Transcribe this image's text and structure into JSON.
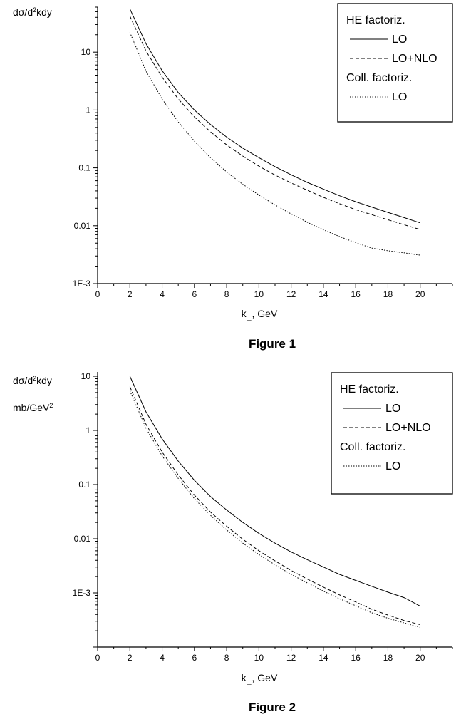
{
  "chart_data": [
    {
      "type": "line",
      "figure_caption": "Figure 1",
      "ylabel": {
        "main": "dσ/d",
        "sup": "2",
        "tail": "kdy"
      },
      "ylabel_line2": null,
      "xlabel": {
        "main": "k",
        "sub": "⊥",
        "tail": ", GeV"
      },
      "xlim": [
        0,
        22
      ],
      "ylim": [
        0.001,
        60
      ],
      "yscale": "log",
      "xticks": [
        0,
        2,
        4,
        6,
        8,
        10,
        12,
        14,
        16,
        18,
        20
      ],
      "yticks": [
        {
          "value": 0.001,
          "label": "1E-3"
        },
        {
          "value": 0.01,
          "label": "0.01"
        },
        {
          "value": 0.1,
          "label": "0.1"
        },
        {
          "value": 1,
          "label": "1"
        },
        {
          "value": 10,
          "label": "10"
        }
      ],
      "x": [
        2,
        3,
        4,
        5,
        6,
        7,
        8,
        9,
        10,
        11,
        12,
        13,
        14,
        15,
        16,
        17,
        18,
        19,
        20
      ],
      "series": [
        {
          "name": "LO",
          "group": "HE factoriz.",
          "style": "solid",
          "values": [
            56,
            14,
            4.8,
            2.0,
            1.0,
            0.56,
            0.34,
            0.22,
            0.15,
            0.105,
            0.076,
            0.056,
            0.043,
            0.033,
            0.026,
            0.021,
            0.017,
            0.0138,
            0.0112
          ]
        },
        {
          "name": "LO+NLO",
          "group": "HE factoriz.",
          "style": "dashed",
          "values": [
            42,
            10.5,
            3.7,
            1.55,
            0.76,
            0.42,
            0.25,
            0.16,
            0.107,
            0.075,
            0.055,
            0.041,
            0.031,
            0.024,
            0.019,
            0.0155,
            0.0127,
            0.0104,
            0.0086
          ]
        },
        {
          "name": "LO",
          "group": "Coll. factoriz.",
          "style": "dotted",
          "values": [
            22,
            4.7,
            1.55,
            0.62,
            0.29,
            0.15,
            0.085,
            0.052,
            0.034,
            0.0228,
            0.016,
            0.0115,
            0.0085,
            0.0065,
            0.0051,
            0.0041,
            0.0037,
            0.0034,
            0.0031
          ]
        }
      ],
      "legend": {
        "position": "top-right",
        "headers": [
          "HE factoriz.",
          "Coll. factoriz."
        ]
      }
    },
    {
      "type": "line",
      "figure_caption": "Figure 2",
      "ylabel": {
        "main": "dσ/d",
        "sup": "2",
        "tail": "kdy"
      },
      "ylabel_line2": {
        "main": "mb/GeV",
        "sup": "2",
        "tail": ""
      },
      "xlabel": {
        "main": "k",
        "sub": "⊥",
        "tail": ", GeV"
      },
      "xlim": [
        0,
        22
      ],
      "ylim": [
        0.0001,
        12
      ],
      "yscale": "log",
      "xticks": [
        0,
        2,
        4,
        6,
        8,
        10,
        12,
        14,
        16,
        18,
        20
      ],
      "yticks": [
        {
          "value": 0.001,
          "label": "1E-3"
        },
        {
          "value": 0.01,
          "label": "0.01"
        },
        {
          "value": 0.1,
          "label": "0.1"
        },
        {
          "value": 1,
          "label": "1"
        },
        {
          "value": 10,
          "label": "10"
        }
      ],
      "x": [
        2,
        3,
        4,
        5,
        6,
        7,
        8,
        9,
        10,
        11,
        12,
        13,
        14,
        15,
        16,
        17,
        18,
        19,
        20
      ],
      "series": [
        {
          "name": "LO",
          "group": "HE factoriz.",
          "style": "solid",
          "values": [
            10,
            2.2,
            0.7,
            0.27,
            0.12,
            0.06,
            0.034,
            0.02,
            0.0125,
            0.0083,
            0.0057,
            0.0041,
            0.003,
            0.0022,
            0.0017,
            0.00132,
            0.00103,
            0.00082,
            0.00057
          ]
        },
        {
          "name": "LO+NLO",
          "group": "HE factoriz.",
          "style": "dashed",
          "values": [
            6.4,
            1.3,
            0.4,
            0.15,
            0.064,
            0.031,
            0.017,
            0.0098,
            0.006,
            0.0039,
            0.0026,
            0.0018,
            0.00128,
            0.00092,
            0.00068,
            0.0005,
            0.00039,
            0.00031,
            0.00026
          ]
        },
        {
          "name": "LO",
          "group": "Coll. factoriz.",
          "style": "dotted",
          "values": [
            5.4,
            1.1,
            0.34,
            0.13,
            0.055,
            0.027,
            0.0145,
            0.0083,
            0.0051,
            0.0033,
            0.0022,
            0.00153,
            0.00108,
            0.00078,
            0.00058,
            0.00043,
            0.00034,
            0.00028,
            0.00023
          ]
        }
      ],
      "legend": {
        "position": "top-right",
        "headers": [
          "HE factoriz.",
          "Coll. factoriz."
        ]
      }
    }
  ]
}
